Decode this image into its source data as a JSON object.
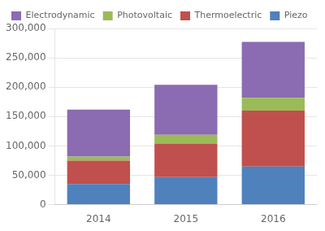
{
  "chart_data": {
    "type": "bar",
    "stacked": true,
    "categories": [
      "2014",
      "2015",
      "2016"
    ],
    "series": [
      {
        "name": "Piezo",
        "color": "#4F81BD",
        "values": [
          35000,
          47000,
          65000
        ]
      },
      {
        "name": "Thermoelectric",
        "color": "#C0504D",
        "values": [
          40000,
          57000,
          95000
        ]
      },
      {
        "name": "Photovoltaic",
        "color": "#9BBB59",
        "values": [
          7000,
          15000,
          22000
        ]
      },
      {
        "name": "Electrodynamic",
        "color": "#8B6BB1",
        "values": [
          80000,
          85000,
          95000
        ]
      }
    ],
    "ylim": [
      0,
      300000
    ],
    "yticks": [
      0,
      {
        "value": 50000,
        "label": "50,000"
      },
      {
        "value": 100000,
        "label": "100,000"
      },
      {
        "value": 150000,
        "label": "150,000"
      },
      {
        "value": 200000,
        "label": "200,000"
      },
      {
        "value": 250000,
        "label": "250,000"
      },
      {
        "value": 300000,
        "label": "300,000"
      }
    ],
    "grid": true,
    "legend": "upper left"
  }
}
